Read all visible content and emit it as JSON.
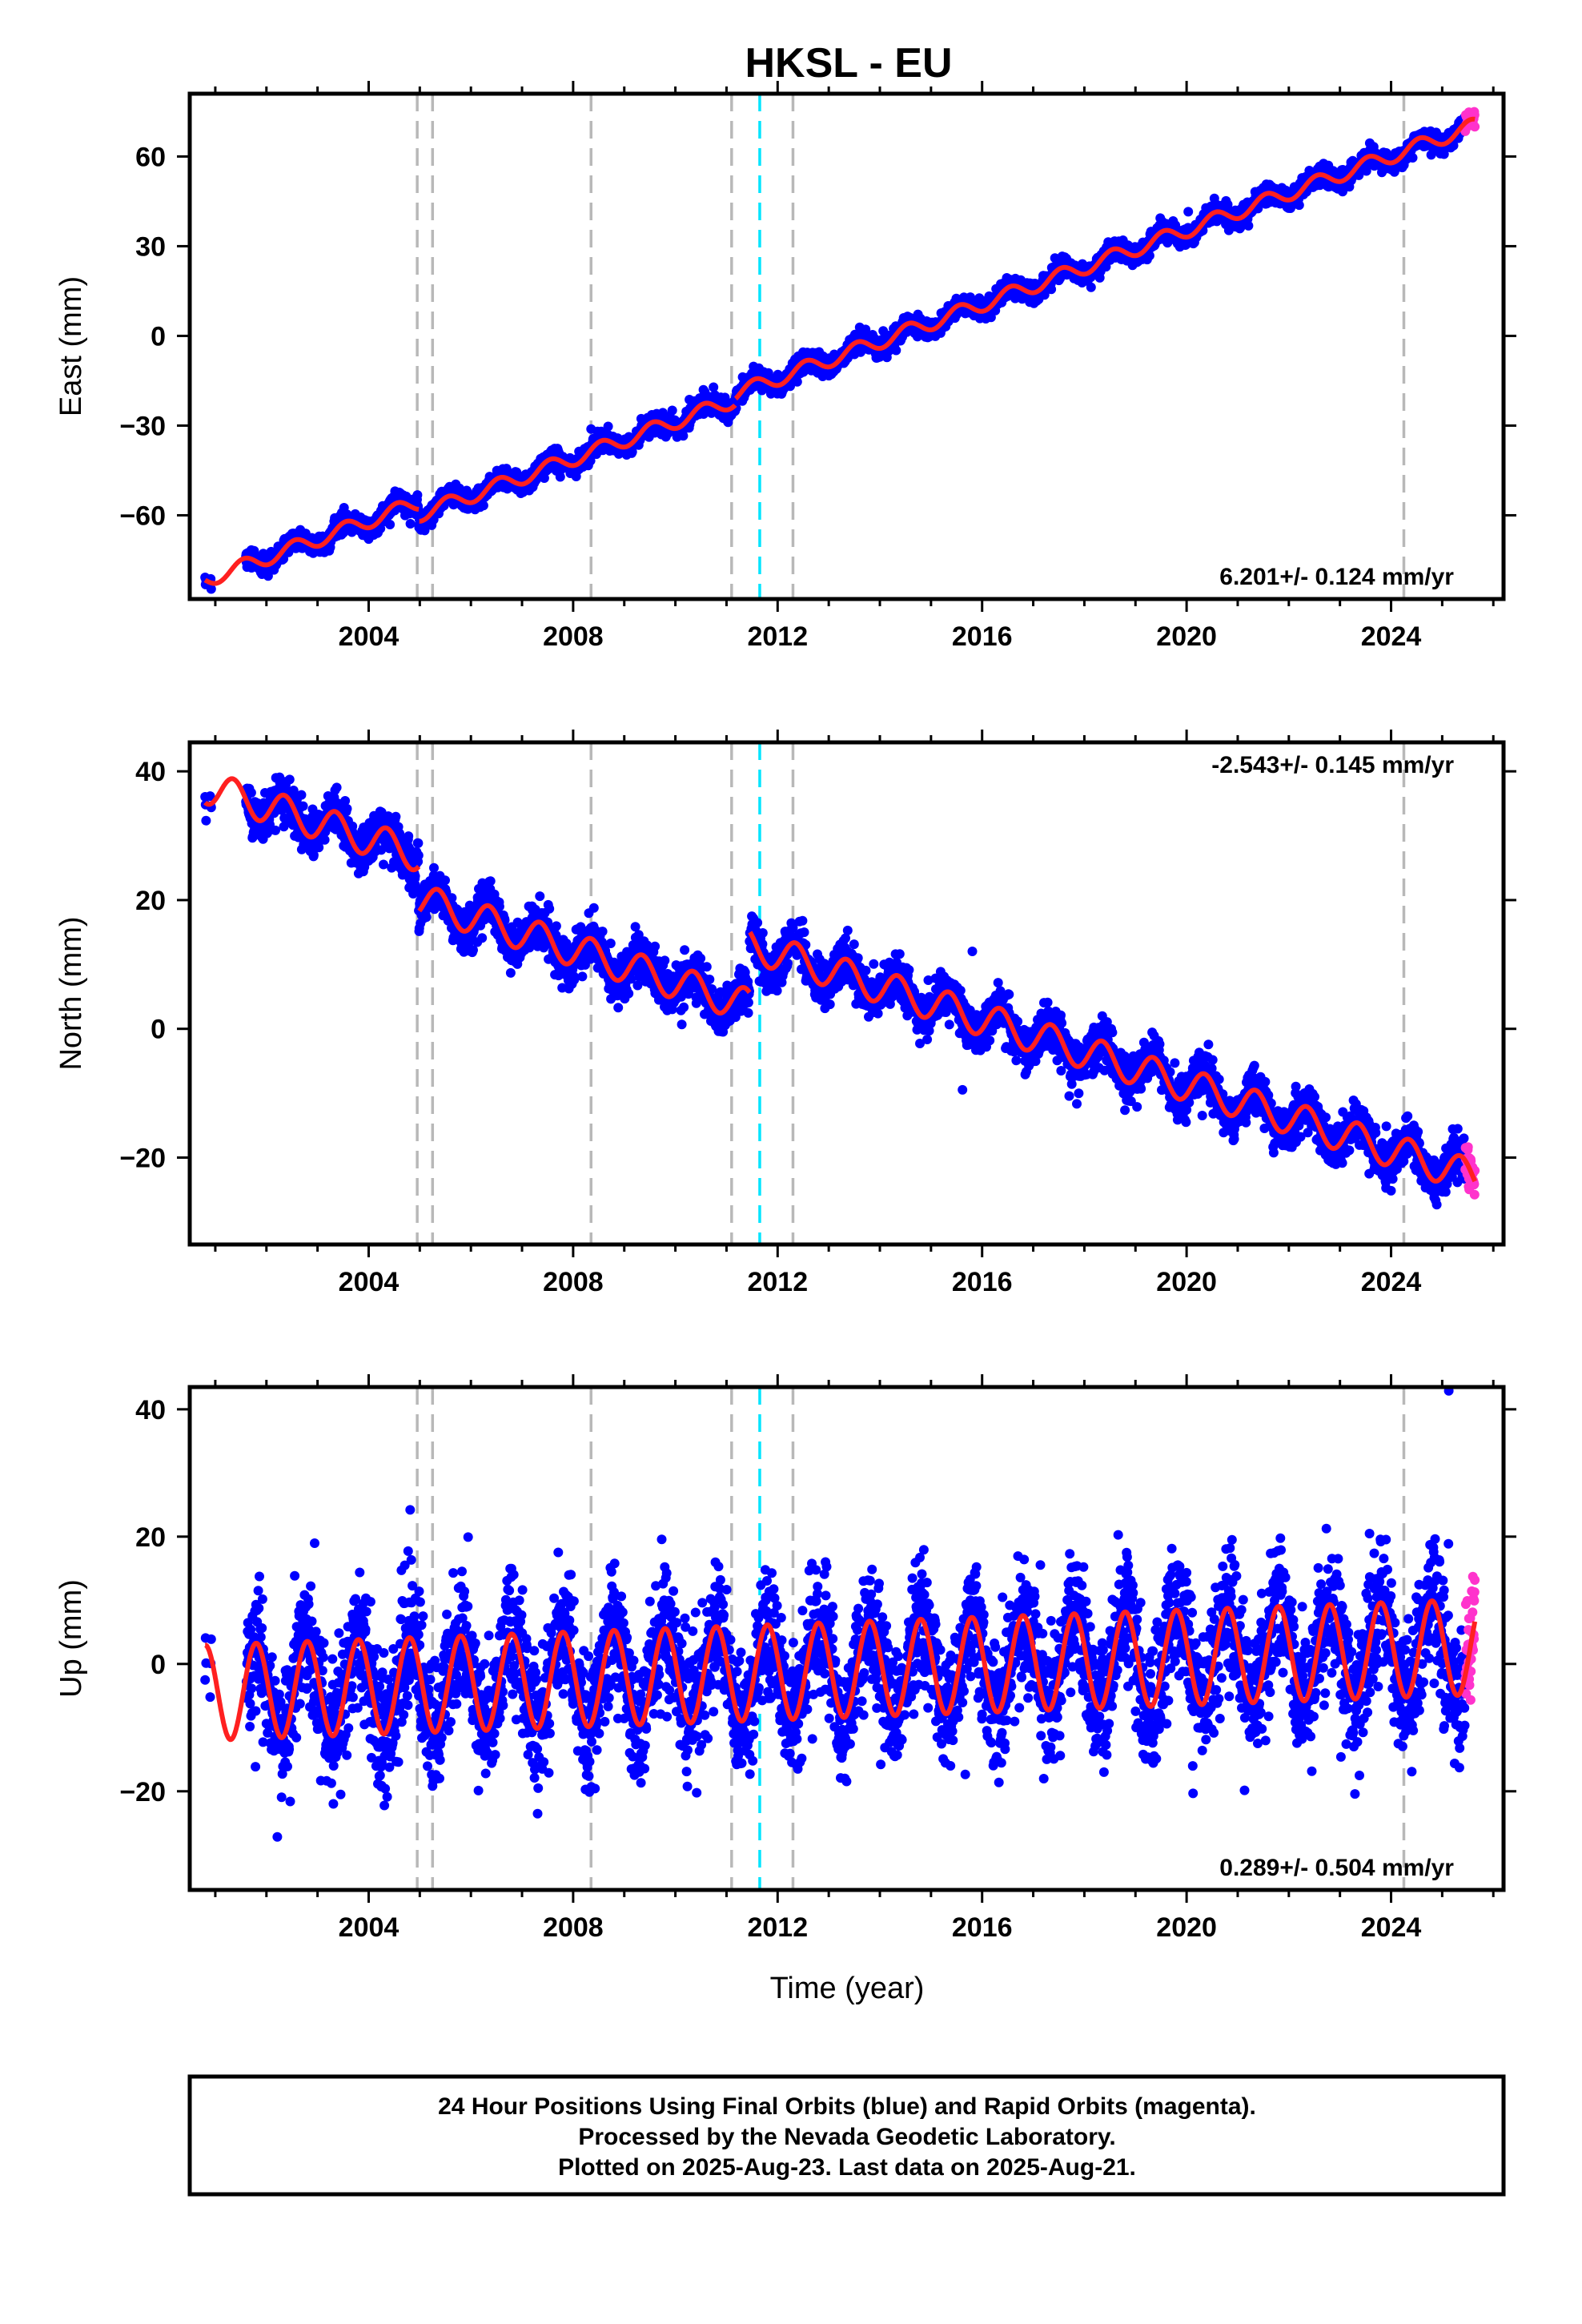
{
  "title": "HKSL - EU",
  "footer": [
    "24 Hour Positions Using Final Orbits (blue) and Rapid Orbits (magenta).",
    "Processed by the Nevada Geodetic Laboratory.",
    "Plotted on 2025-Aug-23. Last data on 2025-Aug-21."
  ],
  "colors": {
    "final_orbits": "#0000ff",
    "rapid_orbits": "#ff33cc",
    "model_fit": "#ff2020",
    "equipment_change": "#b8b8b8",
    "earthquake": "#00e5ff"
  },
  "chart_data": [
    {
      "type": "scatter",
      "component": "east",
      "ylabel": "East (mm)",
      "xlabel": "",
      "xlim": [
        2000.5,
        2026.2
      ],
      "ylim": [
        -88,
        81
      ],
      "xticks": [
        2004,
        2008,
        2012,
        2016,
        2020,
        2024
      ],
      "yticks": [
        -60,
        -30,
        0,
        30,
        60
      ],
      "ytick_labels": [
        "−60",
        "−30",
        "0",
        "30",
        "60"
      ],
      "rate_label": "6.201+/- 0.124 mm/yr",
      "rate_position": "bottom-right",
      "model": {
        "t0": 2013.0,
        "intercept": -6.0,
        "slope": 6.201,
        "annual_amp": 2.5,
        "annual_phase": 0.3,
        "noise_sd": 1.6,
        "data_start": 2001.6,
        "early_points": [
          2000.8,
          2000.9
        ],
        "steps": [
          [
            2004.98,
            -4.0
          ],
          [
            2011.17,
            2.0
          ]
        ]
      }
    },
    {
      "type": "scatter",
      "component": "north",
      "ylabel": "North (mm)",
      "xlabel": "",
      "xlim": [
        2000.5,
        2026.2
      ],
      "ylim": [
        -33.5,
        44.5
      ],
      "xticks": [
        2004,
        2008,
        2012,
        2016,
        2020,
        2024
      ],
      "yticks": [
        -20,
        0,
        20,
        40
      ],
      "ytick_labels": [
        "−20",
        "0",
        "20",
        "40"
      ],
      "rate_label": "-2.543+/- 0.145 mm/yr",
      "rate_position": "top-right",
      "model": {
        "t0": 2013.0,
        "intercept": 6.6,
        "slope": -2.543,
        "annual_amp": 2.6,
        "annual_phase": 0.1,
        "noise_sd": 1.7,
        "data_start": 2001.6,
        "early_points": [
          2000.8,
          2000.9
        ],
        "steps": [
          [
            2004.98,
            -7.0
          ],
          [
            2011.45,
            9.5
          ]
        ]
      }
    },
    {
      "type": "scatter",
      "component": "up",
      "ylabel": "Up (mm)",
      "xlabel": "Time (year)",
      "xlim": [
        2000.5,
        2026.2
      ],
      "ylim": [
        -35.5,
        43.5
      ],
      "xticks": [
        2004,
        2008,
        2012,
        2016,
        2020,
        2024
      ],
      "yticks": [
        -20,
        0,
        20,
        40
      ],
      "ytick_labels": [
        "−20",
        "0",
        "20",
        "40"
      ],
      "rate_label": "0.289+/- 0.504 mm/yr",
      "rate_position": "bottom-right",
      "model": {
        "t0": 2013.0,
        "intercept": -1.0,
        "slope": 0.289,
        "annual_amp": 7.5,
        "annual_phase": 0.55,
        "noise_sd": 5.2,
        "data_start": 2001.6,
        "early_points": [
          2000.8,
          2000.9
        ],
        "steps": []
      }
    }
  ],
  "events": {
    "equipment_changes": [
      2004.95,
      2005.25,
      2008.35,
      2011.1,
      2012.3,
      2024.25
    ],
    "earthquakes": [
      2011.65
    ]
  },
  "rapid_orbits_start": 2025.45,
  "data_end": 2025.64
}
